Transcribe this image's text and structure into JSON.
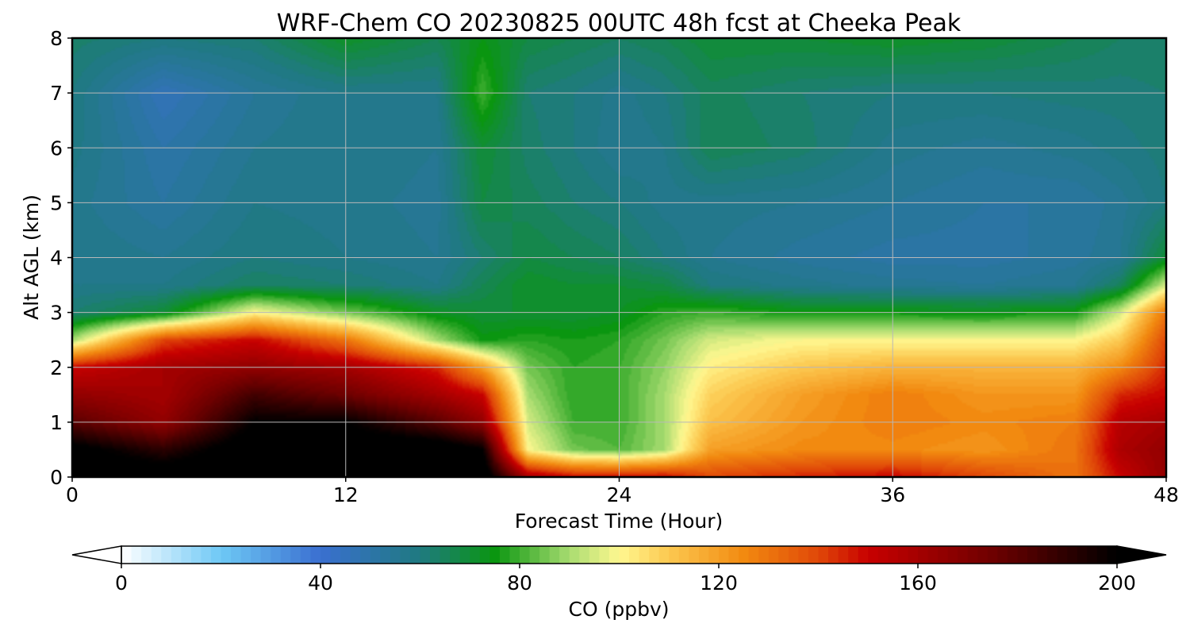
{
  "chart_data": {
    "type": "heatmap",
    "title": "WRF-Chem CO  20230825 00UTC 48h fcst at Cheeka Peak",
    "xlabel": "Forecast Time (Hour)",
    "ylabel": "Alt AGL (km)",
    "xlim": [
      0,
      48
    ],
    "ylim": [
      0,
      8
    ],
    "xticks": [
      "0",
      "12",
      "24",
      "36",
      "48"
    ],
    "yticks": [
      "0",
      "1",
      "2",
      "3",
      "4",
      "5",
      "6",
      "7",
      "8"
    ],
    "grid": true,
    "colorbar": {
      "label": "CO  (ppbv)",
      "range": [
        0,
        200
      ],
      "ticks": [
        "0",
        "40",
        "80",
        "120",
        "160",
        "200"
      ],
      "extend": "both",
      "stops": [
        {
          "v": 0,
          "c": "#ffffff"
        },
        {
          "v": 20,
          "c": "#6ec8f5"
        },
        {
          "v": 40,
          "c": "#3a6fd0"
        },
        {
          "v": 60,
          "c": "#1f7a80"
        },
        {
          "v": 75,
          "c": "#0a9610"
        },
        {
          "v": 90,
          "c": "#a8dc70"
        },
        {
          "v": 100,
          "c": "#fff890"
        },
        {
          "v": 110,
          "c": "#fcc850"
        },
        {
          "v": 125,
          "c": "#f28a10"
        },
        {
          "v": 140,
          "c": "#e04808"
        },
        {
          "v": 150,
          "c": "#c80000"
        },
        {
          "v": 175,
          "c": "#6e0000"
        },
        {
          "v": 200,
          "c": "#000000"
        }
      ]
    },
    "times": [
      0,
      4,
      8,
      12,
      16,
      18,
      20,
      22,
      24,
      26,
      28,
      32,
      36,
      40,
      44,
      46,
      48
    ],
    "levels": [
      0,
      0.5,
      1,
      1.5,
      2,
      2.5,
      3,
      3.5,
      4,
      5,
      6,
      7,
      8
    ],
    "values": [
      [
        210,
        210,
        210,
        210,
        210,
        210,
        160,
        150,
        150,
        150,
        140,
        145,
        150,
        140,
        130,
        150,
        165
      ],
      [
        205,
        190,
        210,
        210,
        210,
        200,
        100,
        85,
        82,
        90,
        120,
        125,
        125,
        122,
        130,
        158,
        165
      ],
      [
        180,
        165,
        200,
        200,
        180,
        165,
        95,
        80,
        80,
        90,
        112,
        122,
        128,
        125,
        128,
        155,
        160
      ],
      [
        165,
        160,
        185,
        175,
        160,
        150,
        90,
        78,
        80,
        90,
        108,
        120,
        128,
        122,
        122,
        145,
        150
      ],
      [
        150,
        160,
        165,
        160,
        145,
        120,
        85,
        78,
        80,
        88,
        102,
        110,
        115,
        115,
        115,
        125,
        145
      ],
      [
        90,
        140,
        150,
        130,
        90,
        75,
        78,
        76,
        78,
        85,
        95,
        100,
        100,
        100,
        100,
        110,
        140
      ],
      [
        62,
        70,
        100,
        85,
        72,
        70,
        70,
        70,
        72,
        78,
        80,
        75,
        75,
        74,
        76,
        95,
        130
      ],
      [
        58,
        58,
        64,
        62,
        58,
        66,
        72,
        70,
        70,
        68,
        60,
        57,
        55,
        54,
        56,
        65,
        95
      ],
      [
        58,
        56,
        60,
        58,
        56,
        62,
        68,
        66,
        64,
        60,
        56,
        53,
        51,
        51,
        53,
        56,
        70
      ],
      [
        57,
        52,
        58,
        57,
        55,
        68,
        65,
        62,
        60,
        57,
        57,
        56,
        54,
        52,
        52,
        55,
        60
      ],
      [
        59,
        50,
        56,
        58,
        56,
        70,
        63,
        60,
        56,
        58,
        66,
        63,
        57,
        55,
        57,
        59,
        61
      ],
      [
        60,
        46,
        54,
        58,
        58,
        80,
        62,
        60,
        57,
        60,
        65,
        62,
        60,
        60,
        61,
        61,
        62
      ],
      [
        63,
        60,
        62,
        72,
        66,
        74,
        68,
        66,
        64,
        66,
        70,
        70,
        72,
        70,
        66,
        64,
        64
      ]
    ]
  }
}
